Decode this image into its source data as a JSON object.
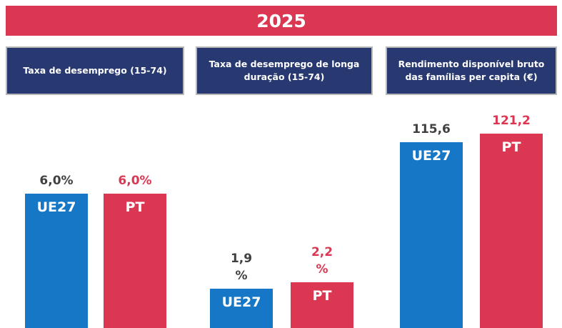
{
  "header": "2025",
  "chart_data": [
    {
      "type": "bar",
      "title": "Taxa de desemprego (15-74)",
      "categories": [
        "UE27",
        "PT"
      ],
      "values": [
        6.0,
        6.0
      ],
      "value_labels": [
        "6,0%",
        "6,0%"
      ],
      "colors": [
        "#1677c7",
        "#dc3752"
      ],
      "label_colors": [
        "#404040",
        "#dc3752"
      ],
      "ylim": [
        0,
        10.2
      ]
    },
    {
      "type": "bar",
      "title": "Taxa de desemprego de longa duração (15-74)",
      "categories": [
        "UE27",
        "PT"
      ],
      "values": [
        1.9,
        2.2
      ],
      "value_labels": [
        "1,9 %",
        "2,2 %"
      ],
      "colors": [
        "#1677c7",
        "#dc3752"
      ],
      "label_colors": [
        "#404040",
        "#dc3752"
      ],
      "ylim": [
        0,
        11
      ]
    },
    {
      "type": "bar",
      "title": "Rendimento disponível bruto das famílias per capita (€)",
      "categories": [
        "UE27",
        "PT"
      ],
      "values": [
        115.6,
        121.2
      ],
      "value_labels": [
        "115,6",
        "121,2"
      ],
      "colors": [
        "#1677c7",
        "#dc3752"
      ],
      "label_colors": [
        "#404040",
        "#dc3752"
      ],
      "ylim": [
        0,
        142
      ]
    }
  ]
}
